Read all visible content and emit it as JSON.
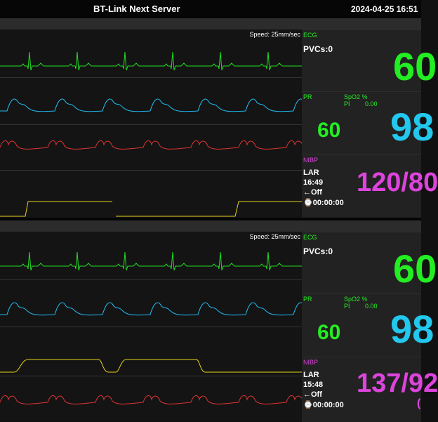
{
  "header": {
    "title": "BT-Link Next Server",
    "datetime": "2024-04-25 16:51"
  },
  "colors": {
    "ecg": "#22dd22",
    "pleth": "#22bbee",
    "resp": "#dd3333",
    "aux": "#e6d21a",
    "nibp": "#dd44dd",
    "spo2": "#22c8ee",
    "pr": "#22ee22"
  },
  "panels": [
    {
      "speed": "Speed: 25mm/sec",
      "ecg": {
        "label": "ECG",
        "pvcs": "PVCs:0",
        "hr": "60"
      },
      "spo2": {
        "pr_label": "PR",
        "spo2_label": "SpO2 %",
        "pi_label": "PI",
        "pi_value": "0.00",
        "pr_value": "60",
        "spo2_value": "98"
      },
      "nibp": {
        "label": "NIBP",
        "mode": "LAR",
        "time": "16:49",
        "auto": "←Off",
        "timer": "⌚00:00:00",
        "value": "120/80"
      }
    },
    {
      "speed": "Speed: 25mm/sec",
      "ecg": {
        "label": "ECG",
        "pvcs": "PVCs:0",
        "hr": "60"
      },
      "spo2": {
        "pr_label": "PR",
        "spo2_label": "SpO2 %",
        "pi_label": "PI",
        "pi_value": "0.00",
        "pr_value": "60",
        "spo2_value": "98"
      },
      "nibp": {
        "label": "NIBP",
        "mode": "LAR",
        "time": "15:48",
        "auto": "←Off",
        "timer": "⌚00:00:00",
        "value": "137/92",
        "value_extra": "("
      }
    }
  ]
}
